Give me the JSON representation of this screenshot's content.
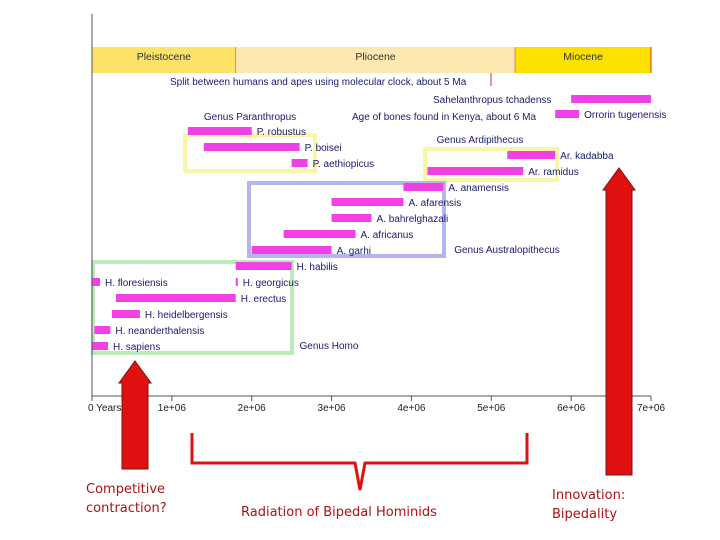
{
  "chart_data": {
    "type": "bar",
    "x_axis": {
      "min": 0,
      "max": 7000000,
      "ticks": [
        {
          "value": 0,
          "label": "0  Years"
        },
        {
          "value": 1000000,
          "label": "1e+06"
        },
        {
          "value": 2000000,
          "label": "2e+06"
        },
        {
          "value": 3000000,
          "label": "3e+06"
        },
        {
          "value": 4000000,
          "label": "4e+06"
        },
        {
          "value": 5000000,
          "label": "5e+06"
        },
        {
          "value": 6000000,
          "label": "6e+06"
        },
        {
          "value": 7000000,
          "label": "7e+06"
        }
      ]
    },
    "epochs": [
      {
        "name": "Pleistocene",
        "start": 0,
        "end": 1800000,
        "color": "#fde26a"
      },
      {
        "name": "Pliocene",
        "start": 1800000,
        "end": 5300000,
        "color": "#fde9b0"
      },
      {
        "name": "Miocene",
        "start": 5300000,
        "end": 7000000,
        "color": "#fbe000"
      }
    ],
    "species": [
      {
        "name": "Sahelanthropus tchadenss",
        "start": 6000000,
        "end": 7000000
      },
      {
        "name": "Orrorin tugenensis",
        "start": 5800000,
        "end": 6100000
      },
      {
        "name": "P. robustus",
        "start": 1200000,
        "end": 2000000
      },
      {
        "name": "P. boisei",
        "start": 1400000,
        "end": 2600000
      },
      {
        "name": "P. aethiopicus",
        "start": 2500000,
        "end": 2700000
      },
      {
        "name": "Ar. kadabba",
        "start": 5200000,
        "end": 5800000
      },
      {
        "name": "Ar. ramidus",
        "start": 4200000,
        "end": 5400000
      },
      {
        "name": "A. anamensis",
        "start": 3900000,
        "end": 4400000
      },
      {
        "name": "A. afarensis",
        "start": 3000000,
        "end": 3900000
      },
      {
        "name": "A. bahrelghazali",
        "start": 3000000,
        "end": 3500000
      },
      {
        "name": "A. africanus",
        "start": 2400000,
        "end": 3300000
      },
      {
        "name": "A. garhi",
        "start": 2000000,
        "end": 3000000
      },
      {
        "name": "H. habilis",
        "start": 1800000,
        "end": 2500000
      },
      {
        "name": "H. floresiensis",
        "start": 0,
        "end": 100000
      },
      {
        "name": "H. georgicus",
        "start": 1800000,
        "end": 1800000
      },
      {
        "name": "H. erectus",
        "start": 300000,
        "end": 1800000
      },
      {
        "name": "H. heidelbergensis",
        "start": 250000,
        "end": 600000
      },
      {
        "name": "H. neanderthalensis",
        "start": 30000,
        "end": 230000
      },
      {
        "name": "H. sapiens",
        "start": 0,
        "end": 200000
      }
    ],
    "annotations": [
      "Split between humans and apes using molecular clock, about 5 Ma",
      "Age of bones found in Kenya, about 6 Ma"
    ],
    "groups": [
      {
        "name": "Genus Paranthropus",
        "color": "#fbf5a6"
      },
      {
        "name": "Genus Ardipithecus",
        "color": "#fbf5a6"
      },
      {
        "name": "Genus Australopithecus",
        "color": "#b3b6ee"
      },
      {
        "name": "Genus Homo",
        "color": "#b9ecb6"
      }
    ],
    "bar_color": "#f040e6"
  },
  "captions": {
    "left": [
      "Competitive",
      "contraction?"
    ],
    "middle": "Radiation of Bipedal Hominids",
    "right": [
      "Innovation:",
      "Bipedality"
    ]
  },
  "accent_color": "#e01010"
}
